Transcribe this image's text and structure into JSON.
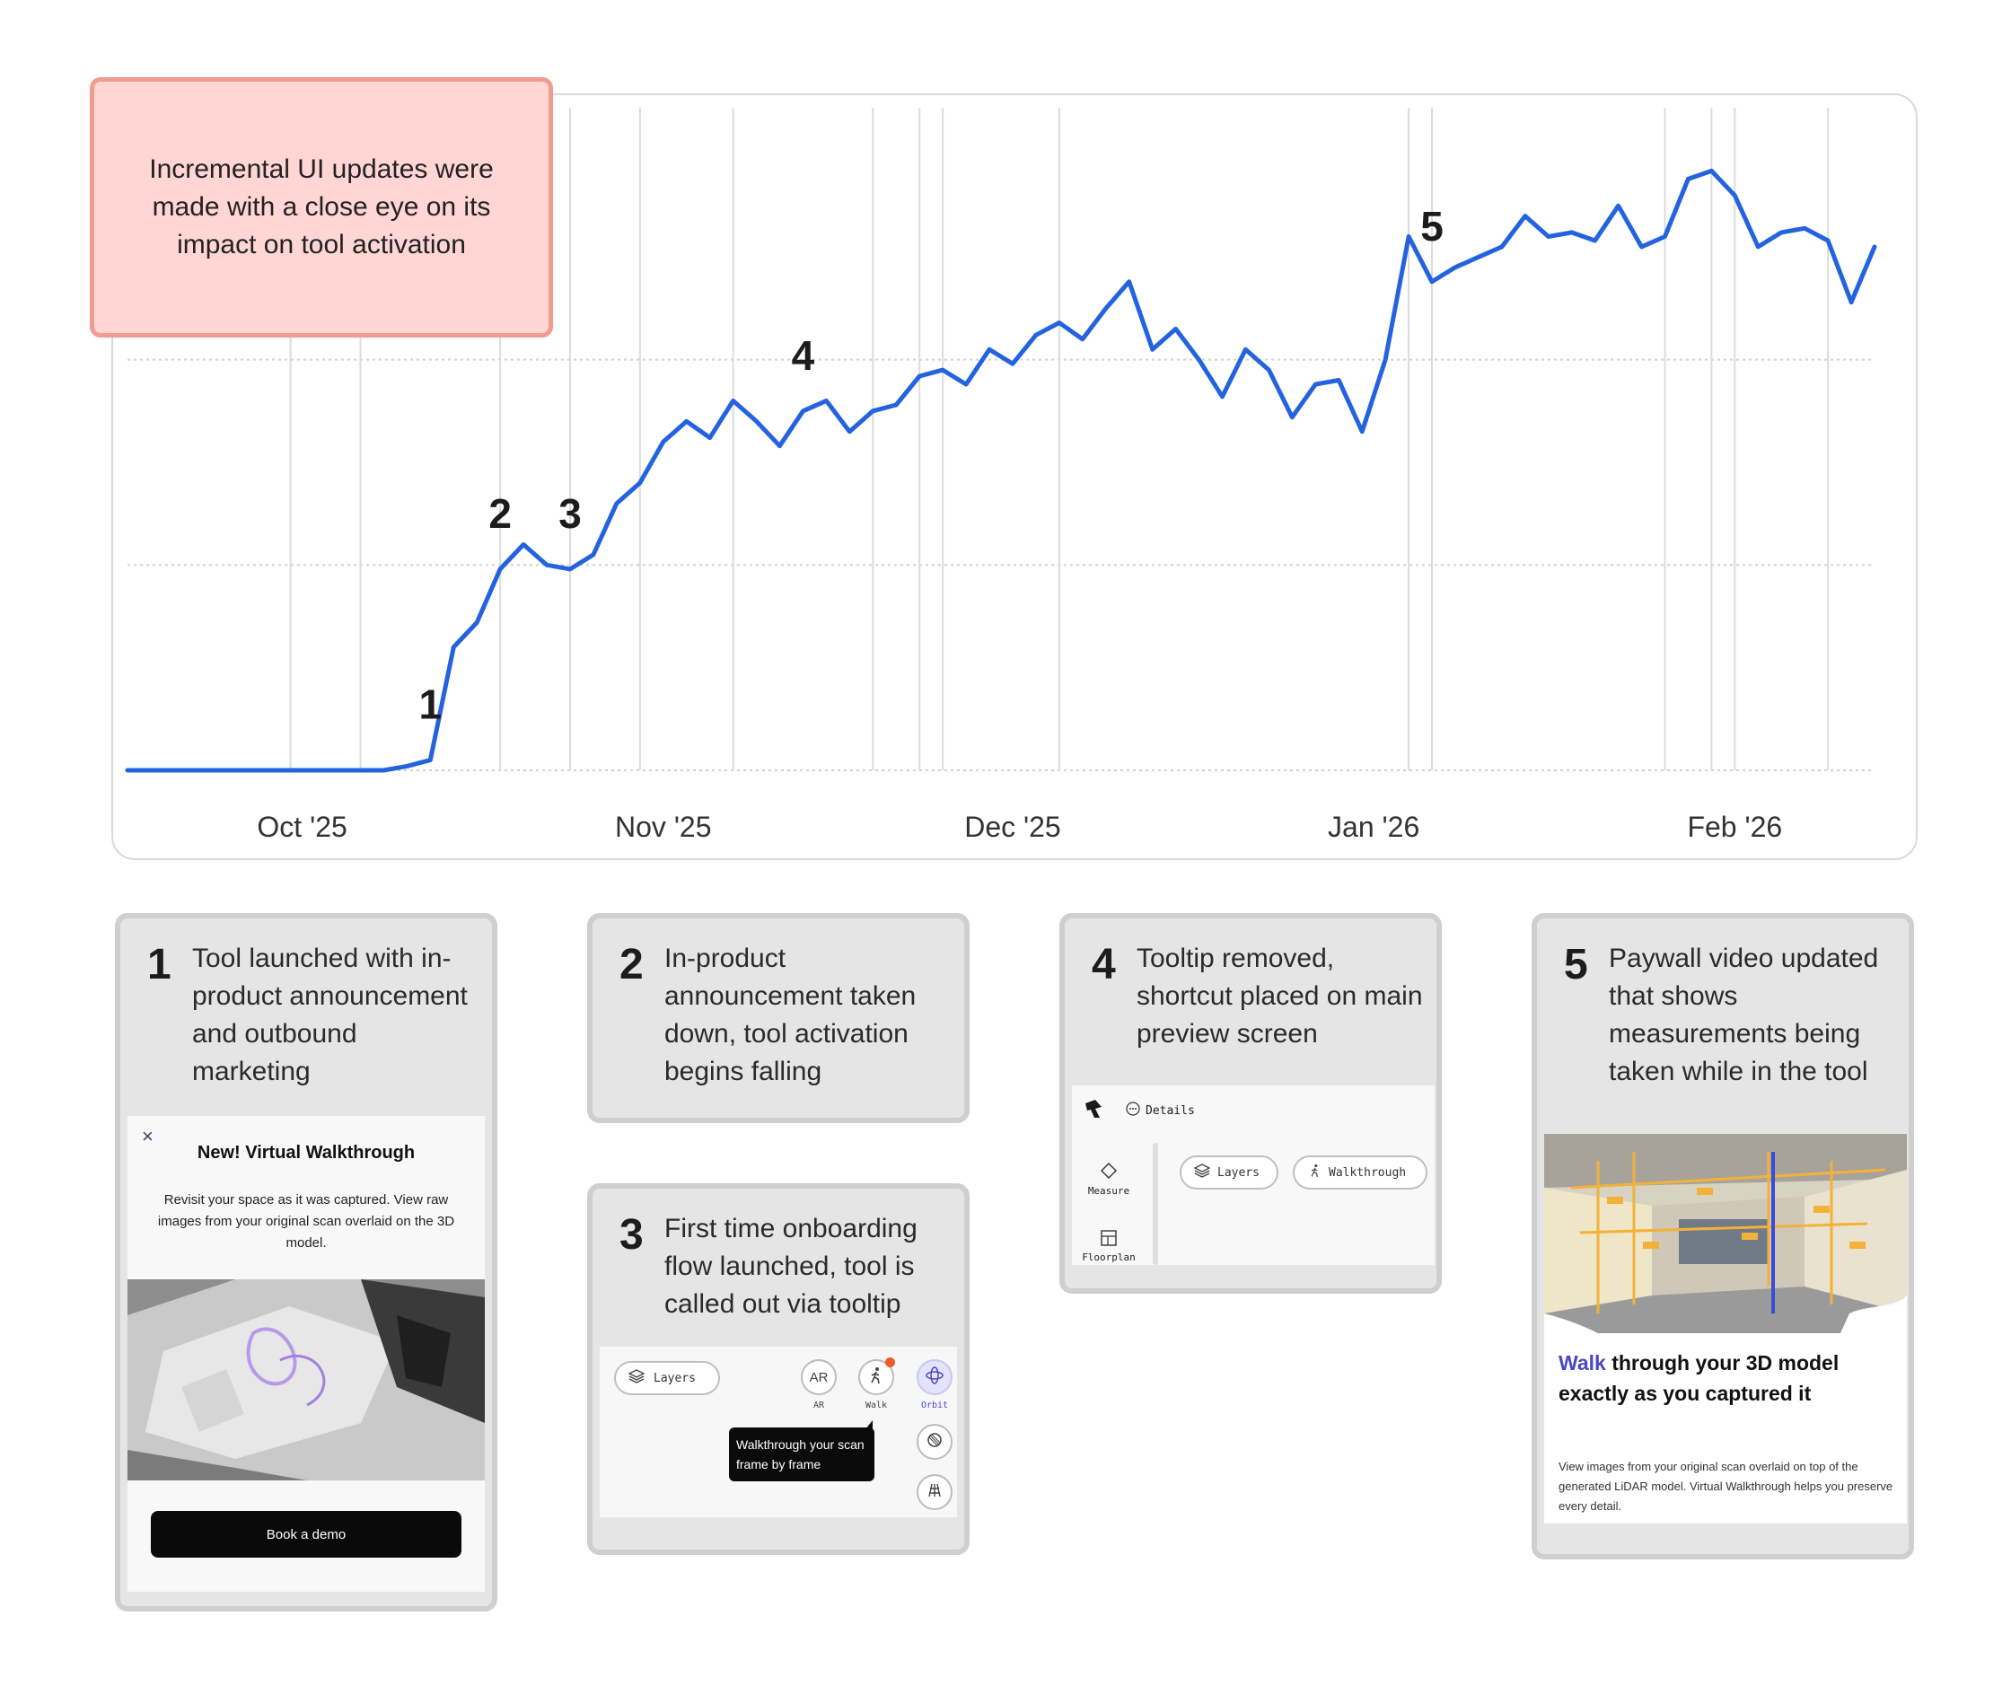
{
  "callout": {
    "text": "Incremental UI updates were made with a close eye on its impact on tool activation"
  },
  "colors": {
    "line": "#2463e0",
    "callout_fill": "#ffd6d3",
    "callout_border": "#f49b91",
    "card_bg": "#e5e5e5",
    "card_border": "#cfcfcf",
    "accent_purple": "#4b47c5"
  },
  "chart_data": {
    "type": "line",
    "title": "",
    "xlabel": "",
    "ylabel": "",
    "x_ticks": [
      "Oct '25",
      "Nov '25",
      "Dec '25",
      "Jan '26",
      "Feb '26"
    ],
    "y_ticks_shown": false,
    "grid": "horizontal dotted, vertical annotation lines",
    "ylim": [
      0,
      3
    ],
    "series": [
      {
        "name": "",
        "x": [
          "2025-09-16",
          "2025-09-18",
          "2025-09-20",
          "2025-09-22",
          "2025-09-24",
          "2025-09-26",
          "2025-09-28",
          "2025-09-30",
          "2025-10-02",
          "2025-10-04",
          "2025-10-06",
          "2025-10-08",
          "2025-10-10",
          "2025-10-12",
          "2025-10-14",
          "2025-10-16",
          "2025-10-18",
          "2025-10-20",
          "2025-10-22",
          "2025-10-24",
          "2025-10-26",
          "2025-10-28",
          "2025-10-30",
          "2025-11-01",
          "2025-11-03",
          "2025-11-05",
          "2025-11-07",
          "2025-11-09",
          "2025-11-11",
          "2025-11-13",
          "2025-11-15",
          "2025-11-17",
          "2025-11-19",
          "2025-11-21",
          "2025-11-23",
          "2025-11-25",
          "2025-11-27",
          "2025-11-29",
          "2025-12-01",
          "2025-12-03",
          "2025-12-05",
          "2025-12-07",
          "2025-12-09",
          "2025-12-11",
          "2025-12-13",
          "2025-12-15",
          "2025-12-17",
          "2025-12-19",
          "2025-12-21",
          "2025-12-23",
          "2025-12-25",
          "2025-12-27",
          "2025-12-29",
          "2025-12-31",
          "2026-01-02",
          "2026-01-04",
          "2026-01-06",
          "2026-01-08",
          "2026-01-10",
          "2026-01-12",
          "2026-01-14",
          "2026-01-16",
          "2026-01-18",
          "2026-01-20",
          "2026-01-22",
          "2026-01-24",
          "2026-01-26",
          "2026-01-28",
          "2026-01-30",
          "2026-02-01",
          "2026-02-03",
          "2026-02-05",
          "2026-02-07",
          "2026-02-09",
          "2026-02-11",
          "2026-02-13"
        ],
        "values": [
          0.0,
          0.0,
          0.0,
          0.0,
          0.0,
          0.0,
          0.0,
          0.0,
          0.0,
          0.0,
          0.0,
          0.0,
          0.02,
          0.05,
          0.6,
          0.72,
          0.98,
          1.1,
          1.0,
          0.98,
          1.05,
          1.3,
          1.4,
          1.6,
          1.7,
          1.62,
          1.8,
          1.7,
          1.58,
          1.75,
          1.8,
          1.65,
          1.75,
          1.78,
          1.92,
          1.95,
          1.88,
          2.05,
          1.98,
          2.12,
          2.18,
          2.1,
          2.25,
          2.38,
          2.05,
          2.15,
          2.0,
          1.82,
          2.05,
          1.95,
          1.72,
          1.88,
          1.9,
          1.65,
          2.0,
          2.6,
          2.38,
          2.45,
          2.5,
          2.55,
          2.7,
          2.6,
          2.62,
          2.58,
          2.75,
          2.55,
          2.6,
          2.88,
          2.92,
          2.8,
          2.55,
          2.62,
          2.64,
          2.58,
          2.28,
          2.55
        ],
        "color": "#2463e0"
      }
    ],
    "annotations": [
      {
        "label": "1",
        "x": "2025-10-12"
      },
      {
        "label": "2",
        "x": "2025-10-18"
      },
      {
        "label": "3",
        "x": "2025-10-24"
      },
      {
        "label": "4",
        "x": "2025-11-13"
      },
      {
        "label": "5",
        "x": "2026-01-06"
      }
    ]
  },
  "cards": [
    {
      "num": "1",
      "text": "Tool launched with in-product announcement and outbound marketing",
      "modal": {
        "close": "×",
        "title": "New! Virtual Walkthrough",
        "body": "Revisit your space as it was captured. View raw images from your original scan overlaid on the 3D model.",
        "button": "Book a demo"
      }
    },
    {
      "num": "2",
      "text": "In-product announcement taken down, tool activation begins falling"
    },
    {
      "num": "3",
      "text": "First time onboarding flow launched, tool is called out via tooltip",
      "ui": {
        "layers": "Layers",
        "ar": "AR",
        "ar_label": "AR",
        "walk_label": "Walk",
        "orbit_label": "Orbit",
        "tooltip": "Walkthrough your scan frame by frame"
      }
    },
    {
      "num": "4",
      "text": "Tooltip removed, shortcut placed on main preview screen",
      "ui": {
        "details": "Details",
        "measure": "Measure",
        "floorplan": "Floorplan",
        "layers": "Layers",
        "walkthrough": "Walkthrough"
      }
    },
    {
      "num": "5",
      "text": "Paywall video updated that shows measurements being taken while in the tool",
      "paywall": {
        "head_highlight": "Walk",
        "head_rest": " through your 3D model exactly as you captured it",
        "body": "View images from your original scan overlaid on top of the generated LiDAR model. Virtual Walkthrough helps you preserve every detail."
      }
    }
  ],
  "icons": [
    "close-icon",
    "layers-icon",
    "walk-icon",
    "orbit-icon",
    "globe-icon",
    "grid-icon",
    "logo-icon",
    "details-icon",
    "measure-icon",
    "floorplan-icon"
  ]
}
